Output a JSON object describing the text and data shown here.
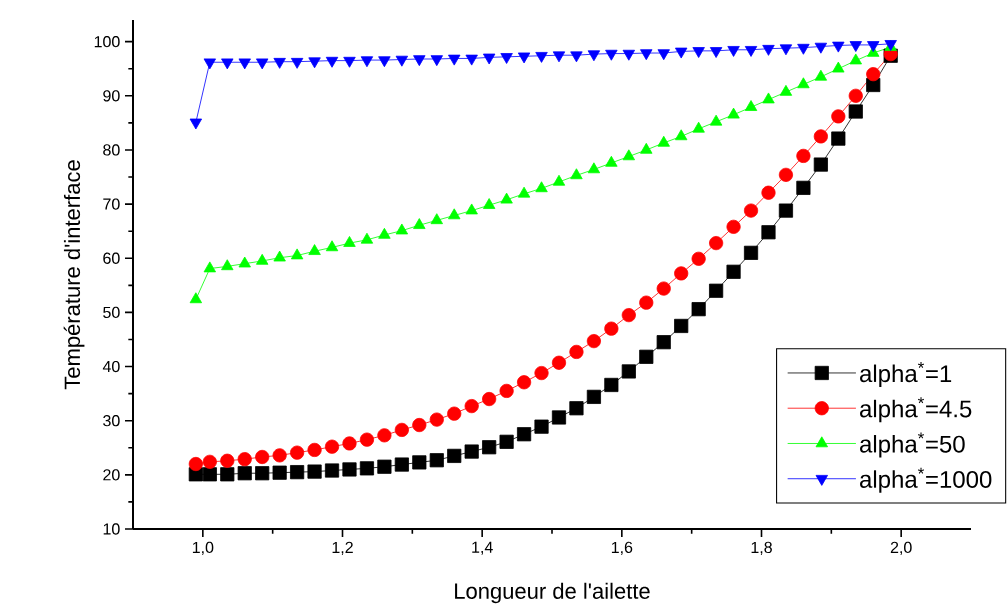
{
  "chart_data": {
    "type": "line",
    "xlabel": "Longueur de l'ailette",
    "ylabel": "Température d'interface",
    "x": [
      0.99,
      1.01,
      1.035,
      1.06,
      1.085,
      1.11,
      1.135,
      1.16,
      1.185,
      1.21,
      1.235,
      1.26,
      1.285,
      1.31,
      1.335,
      1.36,
      1.385,
      1.41,
      1.435,
      1.46,
      1.485,
      1.51,
      1.535,
      1.56,
      1.585,
      1.61,
      1.635,
      1.66,
      1.685,
      1.71,
      1.735,
      1.76,
      1.785,
      1.81,
      1.835,
      1.86,
      1.885,
      1.91,
      1.935,
      1.96,
      1.985
    ],
    "series": [
      {
        "name": "alpha$^{*}$=1",
        "color": "#000000",
        "marker": "square",
        "values": [
          20.1,
          20.1,
          20.1,
          20.3,
          20.3,
          20.4,
          20.5,
          20.6,
          20.8,
          21.0,
          21.2,
          21.5,
          21.9,
          22.3,
          22.7,
          23.5,
          24.3,
          25.1,
          26.1,
          27.5,
          28.9,
          30.6,
          32.3,
          34.4,
          36.6,
          39.1,
          41.8,
          44.5,
          47.5,
          50.6,
          54.0,
          57.5,
          61.0,
          64.8,
          68.8,
          73.0,
          77.3,
          82.1,
          87.1,
          92.0,
          97.4
        ]
      },
      {
        "name": "alpha$^{*}$=4.5",
        "color": "#ff0000",
        "marker": "circle",
        "values": [
          22.0,
          22.4,
          22.6,
          22.9,
          23.3,
          23.6,
          24.1,
          24.6,
          25.2,
          25.8,
          26.5,
          27.3,
          28.3,
          29.2,
          30.2,
          31.3,
          32.7,
          34.0,
          35.5,
          37.1,
          38.8,
          40.7,
          42.7,
          44.7,
          47.0,
          49.5,
          51.8,
          54.4,
          57.2,
          59.9,
          62.8,
          65.8,
          68.8,
          72.1,
          75.4,
          78.9,
          82.5,
          86.2,
          90.0,
          94.0,
          97.7
        ]
      },
      {
        "name": "alpha$^{*}$=50",
        "color": "#00ff00",
        "marker": "triangle",
        "values": [
          52.4,
          58.1,
          58.5,
          59.0,
          59.5,
          60.1,
          60.5,
          61.3,
          62.0,
          62.8,
          63.4,
          64.3,
          65.1,
          66.1,
          67.0,
          67.9,
          68.8,
          69.8,
          70.8,
          71.9,
          72.9,
          74.1,
          75.3,
          76.4,
          77.6,
          78.8,
          80.0,
          81.3,
          82.5,
          83.9,
          85.2,
          86.5,
          87.9,
          89.3,
          90.7,
          92.1,
          93.5,
          95.0,
          96.5,
          97.9,
          99.0
        ]
      },
      {
        "name": "alpha$^{*}$=1000",
        "color": "#0000ff",
        "marker": "triangle down",
        "values": [
          85.1,
          96.2,
          96.2,
          96.2,
          96.2,
          96.3,
          96.3,
          96.4,
          96.5,
          96.5,
          96.6,
          96.6,
          96.7,
          96.8,
          96.8,
          96.9,
          96.9,
          97.1,
          97.2,
          97.3,
          97.4,
          97.5,
          97.5,
          97.7,
          97.8,
          97.8,
          97.9,
          97.9,
          98.2,
          98.3,
          98.3,
          98.5,
          98.5,
          98.7,
          98.8,
          98.9,
          99.1,
          99.3,
          99.4,
          99.4,
          99.6
        ]
      }
    ],
    "xlim": [
      0.9,
      2.1
    ],
    "xticks": [
      {
        "value": 1.0,
        "label": "1,0"
      },
      {
        "value": 1.2,
        "label": "1,2"
      },
      {
        "value": 1.4,
        "label": "1,4"
      },
      {
        "value": 1.6,
        "label": "1,6"
      },
      {
        "value": 1.8,
        "label": "1,8"
      },
      {
        "value": 2.0,
        "label": "2,0"
      }
    ],
    "ylim": [
      10,
      104
    ],
    "yticks": [
      10,
      20,
      30,
      40,
      50,
      60,
      70,
      80,
      90,
      100
    ],
    "grid": false,
    "legend": "bottom right",
    "line_style": "solid"
  }
}
